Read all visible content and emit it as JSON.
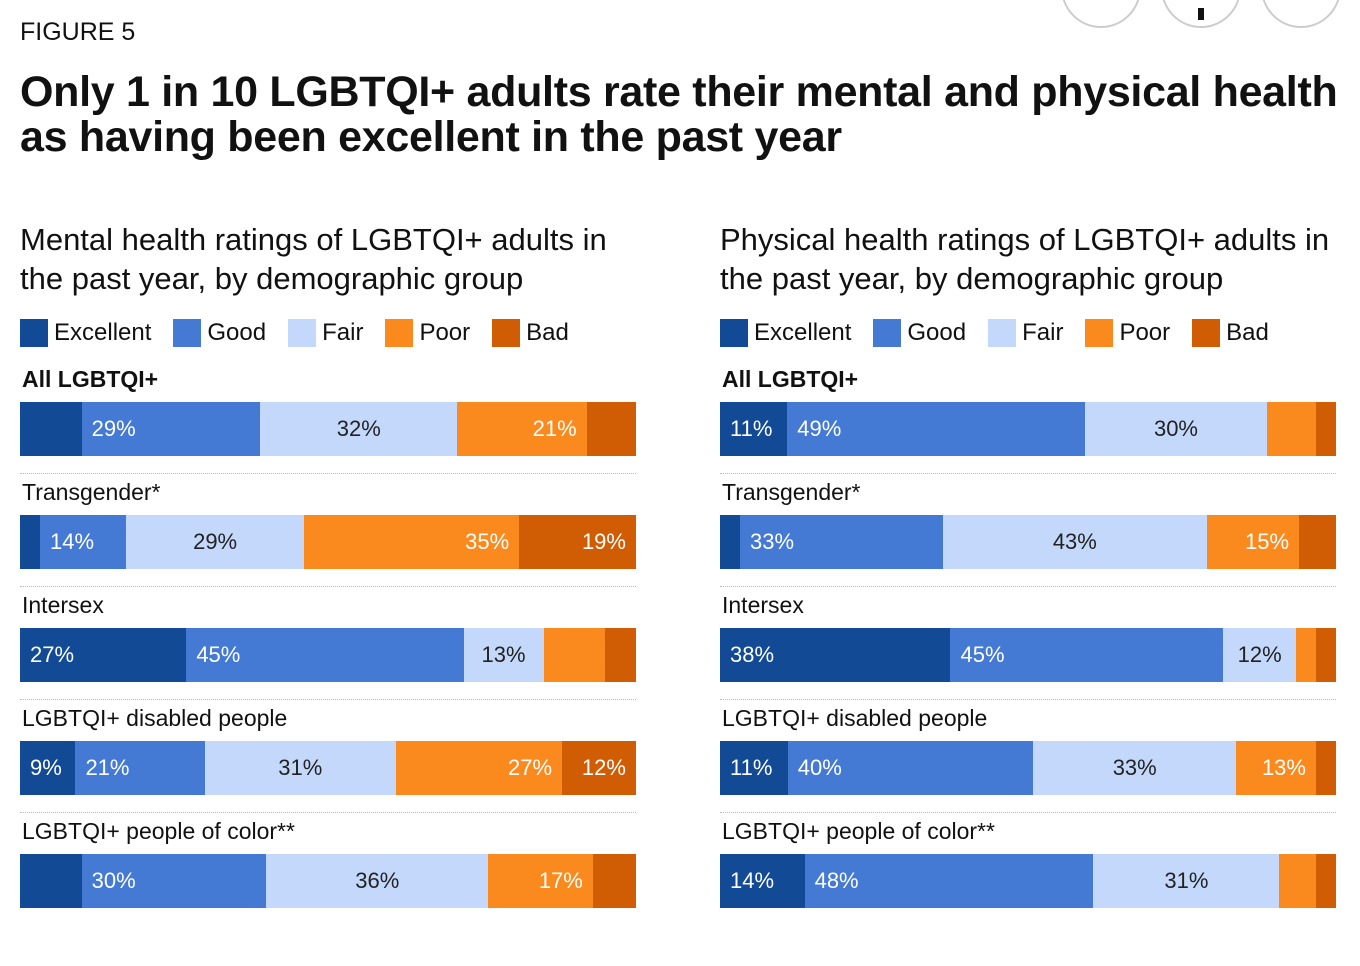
{
  "header": {
    "figure_label": "FIGURE 5",
    "title": "Only 1 in 10 LGBTQI+ adults rate their mental and physical health as having been excellent in the past year"
  },
  "colors": {
    "Excellent": "#124a96",
    "Good": "#4479d4",
    "Fair": "#c3d8fb",
    "Poor": "#fb8a1e",
    "Bad": "#d05d04"
  },
  "chart_data": [
    {
      "type": "bar",
      "stacked": true,
      "orientation": "horizontal",
      "title": "Mental health ratings of LGBTQI+ adults in the past year, by demographic group",
      "legend": [
        "Excellent",
        "Good",
        "Fair",
        "Poor",
        "Bad"
      ],
      "rows": [
        {
          "name": "All LGBTQI+",
          "bold": true,
          "values": [
            10,
            29,
            32,
            21,
            8
          ],
          "labels": [
            "",
            "29%",
            "32%",
            "21%",
            ""
          ]
        },
        {
          "name": "Transgender*",
          "values": [
            3,
            14,
            29,
            35,
            19
          ],
          "labels": [
            "",
            "14%",
            "29%",
            "35%",
            "19%"
          ]
        },
        {
          "name": "Intersex",
          "values": [
            27,
            45,
            13,
            10,
            5
          ],
          "labels": [
            "27%",
            "45%",
            "13%",
            "",
            ""
          ]
        },
        {
          "name": "LGBTQI+ disabled people",
          "values": [
            9,
            21,
            31,
            27,
            12
          ],
          "labels": [
            "9%",
            "21%",
            "31%",
            "27%",
            "12%"
          ]
        },
        {
          "name": "LGBTQI+ people of color**",
          "values": [
            10,
            30,
            36,
            17,
            7
          ],
          "labels": [
            "",
            "30%",
            "36%",
            "17%",
            ""
          ]
        }
      ]
    },
    {
      "type": "bar",
      "stacked": true,
      "orientation": "horizontal",
      "title": "Physical health ratings of LGBTQI+ adults in the past year, by demographic group",
      "legend": [
        "Excellent",
        "Good",
        "Fair",
        "Poor",
        "Bad"
      ],
      "rows": [
        {
          "name": "All LGBTQI+",
          "bold": true,
          "values": [
            11,
            49,
            30,
            8,
            1
          ],
          "labels": [
            "11%",
            "49%",
            "30%",
            "",
            ""
          ]
        },
        {
          "name": "Transgender*",
          "values": [
            3,
            33,
            43,
            15,
            6
          ],
          "labels": [
            "",
            "33%",
            "43%",
            "15%",
            ""
          ]
        },
        {
          "name": "Intersex",
          "values": [
            38,
            45,
            12,
            3,
            2
          ],
          "labels": [
            "38%",
            "45%",
            "12%",
            "",
            ""
          ]
        },
        {
          "name": "LGBTQI+ disabled people",
          "values": [
            11,
            40,
            33,
            13,
            2
          ],
          "labels": [
            "11%",
            "40%",
            "33%",
            "13%",
            ""
          ]
        },
        {
          "name": "LGBTQI+ people of color**",
          "values": [
            14,
            48,
            31,
            6,
            1
          ],
          "labels": [
            "14%",
            "48%",
            "31%",
            "",
            ""
          ]
        }
      ]
    }
  ]
}
